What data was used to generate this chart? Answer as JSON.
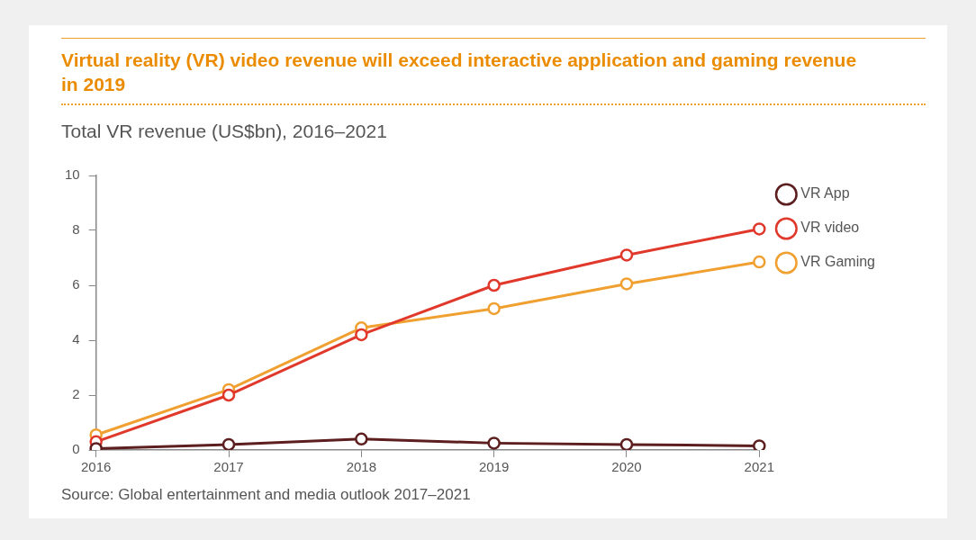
{
  "chart_data": {
    "type": "line",
    "title": "Virtual reality (VR) video revenue will exceed interactive application and gaming revenue in 2019",
    "subtitle": "Total VR revenue (US$bn), 2016–2021",
    "categories": [
      "2016",
      "2017",
      "2018",
      "2019",
      "2020",
      "2021"
    ],
    "series": [
      {
        "name": "VR App",
        "color": "#5c1e1e",
        "values": [
          0.05,
          0.2,
          0.4,
          0.25,
          0.2,
          0.15
        ]
      },
      {
        "name": "VR video",
        "color": "#e0392b",
        "values": [
          0.3,
          2.0,
          4.2,
          6.0,
          7.1,
          8.05
        ]
      },
      {
        "name": "VR Gaming",
        "color": "#f0a030",
        "values": [
          0.55,
          2.2,
          4.45,
          5.15,
          6.05,
          6.85
        ]
      }
    ],
    "ylim": [
      0,
      10
    ],
    "yticks": [
      0,
      2,
      4,
      6,
      8,
      10
    ],
    "grid": false,
    "legend": "top right",
    "marker": "circle",
    "line_style": "solid",
    "annotations": [
      "Source: Global entertainment and media outlook 2017–2021"
    ]
  }
}
